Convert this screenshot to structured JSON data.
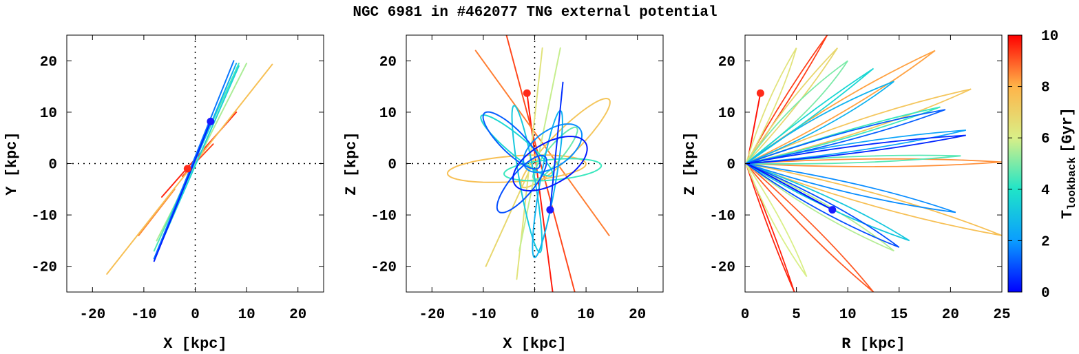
{
  "title": "NGC 6981 in #462077 TNG external potential",
  "chart_data": [
    {
      "type": "line",
      "panel": "xy",
      "xlabel": "X [kpc]",
      "ylabel": "Y [kpc]",
      "xlim": [
        -25,
        25
      ],
      "ylim": [
        -25,
        25
      ],
      "xticks": [
        -20,
        -10,
        0,
        10,
        20
      ],
      "yticks": [
        -20,
        -10,
        0,
        10,
        20
      ],
      "reference_lines": "dotted x=0 and y=0",
      "start_point": {
        "x": -1.5,
        "y": -1.0,
        "t_gyr": 10,
        "color": "#ff2a1a"
      },
      "end_point": {
        "x": 3.0,
        "y": 8.2,
        "t_gyr": 0,
        "color": "#1a1aff"
      },
      "series": [
        {
          "t_gyr": 9.6,
          "path": [
            [
              -6.5,
              -6.5
            ],
            [
              8,
              10
            ]
          ]
        },
        {
          "t_gyr": 9.2,
          "path": [
            [
              -2.5,
              -2.5
            ],
            [
              3.5,
              3.8
            ]
          ]
        },
        {
          "t_gyr": 8.5,
          "path": [
            [
              -11,
              -14
            ],
            [
              -4,
              -5
            ]
          ]
        },
        {
          "t_gyr": 7.6,
          "path": [
            [
              -17.2,
              -21.5
            ],
            [
              15,
              19.3
            ]
          ]
        },
        {
          "t_gyr": 5.5,
          "path": [
            [
              -7.5,
              -15
            ],
            [
              10,
              19.5
            ]
          ]
        },
        {
          "t_gyr": 4.5,
          "path": [
            [
              -8,
              -17
            ],
            [
              8.5,
              19.5
            ]
          ]
        },
        {
          "t_gyr": 3.5,
          "path": [
            [
              -7.5,
              -17.5
            ],
            [
              8.5,
              19
            ]
          ]
        },
        {
          "t_gyr": 2.5,
          "path": [
            [
              -8,
              -18.5
            ],
            [
              8,
              19.5
            ]
          ]
        },
        {
          "t_gyr": 1.5,
          "path": [
            [
              -8,
              -18.5
            ],
            [
              7.5,
              20
            ]
          ]
        },
        {
          "t_gyr": 0.4,
          "path": [
            [
              -8,
              -19
            ],
            [
              3,
              8.2
            ]
          ]
        }
      ]
    },
    {
      "type": "line",
      "panel": "xz",
      "xlabel": "X [kpc]",
      "ylabel": "Z [kpc]",
      "xlim": [
        -25,
        25
      ],
      "ylim": [
        -25,
        25
      ],
      "xticks": [
        -20,
        -10,
        0,
        10,
        20
      ],
      "yticks": [
        -20,
        -10,
        0,
        10,
        20
      ],
      "reference_lines": "dotted x=0 and y=0",
      "start_point": {
        "x": -1.5,
        "y": 13.7,
        "t_gyr": 10,
        "color": "#ff2a1a"
      },
      "end_point": {
        "x": 3.0,
        "y": -9.0,
        "t_gyr": 0,
        "color": "#1a1aff"
      },
      "series": [
        {
          "t_gyr": 9.7,
          "path": [
            [
              -1.5,
              13.7
            ],
            [
              3.5,
              -25
            ]
          ]
        },
        {
          "t_gyr": 9.2,
          "path": [
            [
              -5.5,
              25
            ],
            [
              7.8,
              -25
            ]
          ]
        },
        {
          "t_gyr": 8.6,
          "path": [
            [
              -11.5,
              22
            ],
            [
              14.5,
              -14
            ]
          ]
        },
        {
          "t_gyr": 7.6,
          "ellipse": {
            "cx": -3.5,
            "cy": -1.0,
            "rx": 13.5,
            "ry": 2.5,
            "rot_deg": 4
          }
        },
        {
          "t_gyr": 7.4,
          "ellipse": {
            "cx": 6.0,
            "cy": 4.0,
            "rx": 12.0,
            "ry": 2.5,
            "rot_deg": 45
          }
        },
        {
          "t_gyr": 6.8,
          "path": [
            [
              -9.5,
              -20
            ],
            [
              0.5,
              2
            ]
          ]
        },
        {
          "t_gyr": 6.4,
          "path": [
            [
              -3.5,
              -22.5
            ],
            [
              1.5,
              22.5
            ]
          ]
        },
        {
          "t_gyr": 5.8,
          "path": [
            [
              5.0,
              22.5
            ],
            [
              -3.0,
              -17
            ]
          ]
        },
        {
          "t_gyr": 4.8,
          "ellipse": {
            "cx": 4.0,
            "cy": 2.0,
            "rx": 6.5,
            "ry": 1.5,
            "rot_deg": 50
          }
        },
        {
          "t_gyr": 4.3,
          "ellipse": {
            "cx": 3.5,
            "cy": -1.2,
            "rx": 9.5,
            "ry": 2.0,
            "rot_deg": 5
          }
        },
        {
          "t_gyr": 3.6,
          "ellipse": {
            "cx": -3.5,
            "cy": 3.5,
            "rx": 9.0,
            "ry": 1.8,
            "rot_deg": -40
          }
        },
        {
          "t_gyr": 3.2,
          "ellipse": {
            "cx": -1.5,
            "cy": -3.0,
            "rx": 14.5,
            "ry": 1.5,
            "rot_deg": -80
          }
        },
        {
          "t_gyr": 2.6,
          "ellipse": {
            "cx": 2.5,
            "cy": -4.0,
            "rx": 14.5,
            "ry": 1.5,
            "rot_deg": 80
          }
        },
        {
          "t_gyr": 1.8,
          "ellipse": {
            "cx": 3.5,
            "cy": 3.0,
            "rx": 6.5,
            "ry": 3.5,
            "rot_deg": 35
          }
        },
        {
          "t_gyr": 1.2,
          "ellipse": {
            "cx": -4.5,
            "cy": 4.5,
            "rx": 7.5,
            "ry": 2.3,
            "rot_deg": -45
          }
        },
        {
          "t_gyr": 1.0,
          "ellipse": {
            "cx": -2.5,
            "cy": -4.0,
            "rx": 7.0,
            "ry": 2.3,
            "rot_deg": 50
          }
        },
        {
          "t_gyr": 0.6,
          "path": [
            [
              5.5,
              15.8
            ],
            [
              3.0,
              -9.0
            ]
          ]
        },
        {
          "t_gyr": 0.3,
          "ellipse": {
            "cx": 3.0,
            "cy": 0.0,
            "rx": 8.0,
            "ry": 4.0,
            "rot_deg": 30
          }
        }
      ]
    },
    {
      "type": "line",
      "panel": "rz",
      "xlabel": "R [kpc]",
      "ylabel": "Z [kpc]",
      "xlim": [
        0,
        25
      ],
      "ylim": [
        -25,
        25
      ],
      "xticks": [
        0,
        5,
        10,
        15,
        20,
        25
      ],
      "yticks": [
        -20,
        -10,
        0,
        10,
        20
      ],
      "start_point": {
        "x": 1.5,
        "y": 13.7,
        "t_gyr": 10,
        "color": "#ff2a1a"
      },
      "end_point": {
        "x": 8.5,
        "y": -9.0,
        "t_gyr": 0,
        "color": "#1a1aff"
      },
      "series": [
        {
          "t_gyr": 9.8,
          "path": [
            [
              0.2,
              0
            ],
            [
              1.5,
              13.7
            ]
          ]
        },
        {
          "t_gyr": 9.6,
          "lobe": {
            "tip": [
              4.8,
              -25
            ],
            "width": 0.3
          }
        },
        {
          "t_gyr": 9.3,
          "lobe": {
            "tip": [
              8,
              25
            ],
            "width": 0.5
          }
        },
        {
          "t_gyr": 9.0,
          "lobe": {
            "tip": [
              12.5,
              -25
            ],
            "width": 1.0
          }
        },
        {
          "t_gyr": 8.4,
          "lobe": {
            "tip": [
              25,
              0.3
            ],
            "width": 1.5
          }
        },
        {
          "t_gyr": 8.2,
          "lobe": {
            "tip": [
              18.5,
              22
            ],
            "width": 1.6
          }
        },
        {
          "t_gyr": 7.6,
          "lobe": {
            "tip": [
              25,
              -14
            ],
            "width": 2.2
          }
        },
        {
          "t_gyr": 7.4,
          "lobe": {
            "tip": [
              22,
              14.5
            ],
            "width": 2.0
          }
        },
        {
          "t_gyr": 6.8,
          "lobe": {
            "tip": [
              9,
              22.5
            ],
            "width": 0.8
          }
        },
        {
          "t_gyr": 6.4,
          "lobe": {
            "tip": [
              5,
              22.5
            ],
            "width": 0.8
          }
        },
        {
          "t_gyr": 6.0,
          "lobe": {
            "tip": [
              6,
              -22
            ],
            "width": 0.8
          }
        },
        {
          "t_gyr": 5.6,
          "lobe": {
            "tip": [
              14.5,
              -17
            ],
            "width": 1.6
          }
        },
        {
          "t_gyr": 5.0,
          "lobe": {
            "tip": [
              10,
              20
            ],
            "width": 1.5
          }
        },
        {
          "t_gyr": 4.6,
          "lobe": {
            "tip": [
              21,
              1.5
            ],
            "width": 1.2
          }
        },
        {
          "t_gyr": 4.3,
          "lobe": {
            "tip": [
              19,
              11
            ],
            "width": 1.2
          }
        },
        {
          "t_gyr": 3.6,
          "lobe": {
            "tip": [
              12.5,
              18.5
            ],
            "width": 0.6
          }
        },
        {
          "t_gyr": 3.2,
          "lobe": {
            "tip": [
              16,
              -15
            ],
            "width": 1.5
          }
        },
        {
          "t_gyr": 2.6,
          "lobe": {
            "tip": [
              14.5,
              16
            ],
            "width": 1.7
          }
        },
        {
          "t_gyr": 2.2,
          "lobe": {
            "tip": [
              21.5,
              6.5
            ],
            "width": 1.5
          }
        },
        {
          "t_gyr": 1.8,
          "lobe": {
            "tip": [
              20.5,
              -9.5
            ],
            "width": 1.8
          }
        },
        {
          "t_gyr": 1.2,
          "lobe": {
            "tip": [
              19.5,
              10.5
            ],
            "width": 1.5
          }
        },
        {
          "t_gyr": 1.0,
          "lobe": {
            "tip": [
              15,
              -16.3
            ],
            "width": 1.6
          }
        },
        {
          "t_gyr": 0.5,
          "lobe": {
            "tip": [
              21.5,
              5.5
            ],
            "width": 1.3
          }
        },
        {
          "t_gyr": 0.2,
          "path": [
            [
              0.2,
              0
            ],
            [
              8.5,
              -9.0
            ]
          ]
        }
      ]
    }
  ],
  "colorbar": {
    "label_main": "T",
    "label_sub": "lookback",
    "label_unit": "[Gyr]",
    "range": [
      0,
      10
    ],
    "ticks": [
      0,
      2,
      4,
      6,
      8,
      10
    ],
    "colors": [
      "#0000ff",
      "#0a9dff",
      "#1fe5c8",
      "#d9ef87",
      "#ffb449",
      "#ff0000"
    ]
  }
}
